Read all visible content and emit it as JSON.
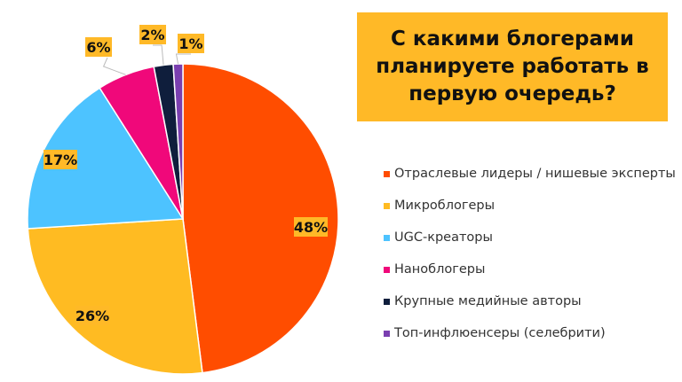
{
  "chart_data": {
    "type": "pie",
    "title": "С какими блогерами планируете работать в первую очередь?",
    "slices": [
      {
        "label": "Отраслевые лидеры / нишевые эксперты",
        "value": 48,
        "display": "48%",
        "color": "#FF4D00"
      },
      {
        "label": "Микроблогеры",
        "value": 26,
        "display": "26%",
        "color": "#FFBB22"
      },
      {
        "label": "UGC-креаторы",
        "value": 17,
        "display": "17%",
        "color": "#4DC3FF"
      },
      {
        "label": "Наноблогеры",
        "value": 6,
        "display": "6%",
        "color": "#F0087A"
      },
      {
        "label": "Крупные медийные авторы",
        "value": 2,
        "display": "2%",
        "color": "#0F1E3C"
      },
      {
        "label": "Топ-инфлюенсеры (селебрити)",
        "value": 1,
        "display": "1%",
        "color": "#7A3FB0"
      }
    ],
    "start_angle": "12 o'clock",
    "direction": "clockwise",
    "legend_placement": "right",
    "label_background": "#FFB927"
  }
}
